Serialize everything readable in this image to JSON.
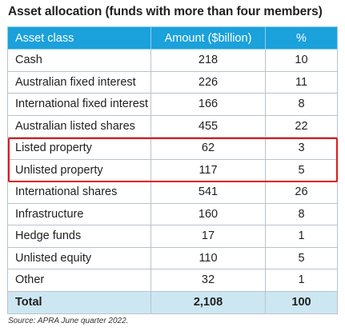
{
  "title": "Asset allocation (funds with more than four members)",
  "table": {
    "headers": [
      "Asset class",
      "Amount ($billion)",
      "%"
    ],
    "rows": [
      {
        "asset_class": "Cash",
        "amount": "218",
        "percent": "10"
      },
      {
        "asset_class": "Australian fixed interest",
        "amount": "226",
        "percent": "11"
      },
      {
        "asset_class": "International fixed interest",
        "amount": "166",
        "percent": "8"
      },
      {
        "asset_class": "Australian listed shares",
        "amount": "455",
        "percent": "22"
      },
      {
        "asset_class": "Listed property",
        "amount": "62",
        "percent": "3"
      },
      {
        "asset_class": "Unlisted property",
        "amount": "117",
        "percent": "5"
      },
      {
        "asset_class": "International shares",
        "amount": "541",
        "percent": "26"
      },
      {
        "asset_class": "Infrastructure",
        "amount": "160",
        "percent": "8"
      },
      {
        "asset_class": "Hedge funds",
        "amount": "17",
        "percent": "1"
      },
      {
        "asset_class": "Unlisted equity",
        "amount": "110",
        "percent": "5"
      },
      {
        "asset_class": "Other",
        "amount": "32",
        "percent": "1"
      }
    ],
    "total": {
      "label": "Total",
      "amount": "2,108",
      "percent": "100"
    }
  },
  "source": "Source: APRA June quarter 2022.",
  "colors": {
    "header_bg": "#1ba1db",
    "total_bg": "#cde7f2",
    "highlight_border": "#e0181b"
  }
}
